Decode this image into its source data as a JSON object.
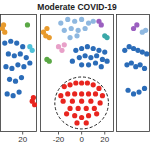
{
  "chart_data": [
    {
      "type": "scatter",
      "xlim": [
        1,
        32
      ],
      "ylim": [
        -35,
        30
      ],
      "xticks": [
        20
      ],
      "tick_labels": "x",
      "series": [
        {
          "color": "#2b6cb8",
          "x": [
            5,
            10,
            15,
            20,
            8,
            13,
            18,
            23,
            6,
            11,
            16,
            21,
            26,
            9,
            14,
            19,
            7,
            12,
            17
          ],
          "y": [
            14,
            15,
            14,
            12,
            8,
            7,
            8,
            6,
            1,
            0,
            2,
            1,
            3,
            -6,
            -7,
            -5,
            -14,
            -15,
            -13
          ]
        },
        {
          "color": "#e89a2c",
          "x": [
            3,
            5,
            4
          ],
          "y": [
            22,
            20,
            24
          ]
        },
        {
          "color": "#4fc1d8",
          "x": [
            26,
            28
          ],
          "y": [
            12,
            10
          ]
        },
        {
          "color": "#e8251f",
          "x": [
            28,
            30,
            29
          ],
          "y": [
            -18,
            -20,
            -16
          ]
        },
        {
          "color": "#5aa845",
          "x": [
            24
          ],
          "y": [
            24
          ]
        }
      ]
    },
    {
      "type": "scatter",
      "title": "Moderate COVID-19",
      "xlim": [
        -36,
        28
      ],
      "ylim": [
        -35,
        30
      ],
      "xticks": [
        -20,
        0,
        20
      ],
      "tick_labels": "x",
      "series": [
        {
          "color": "#e8251f",
          "x": [
            -15,
            -10,
            -5,
            0,
            5,
            10,
            15,
            -12,
            -6,
            0,
            6,
            12,
            -16,
            -8,
            0,
            8,
            16,
            -10,
            -3,
            4,
            11,
            -6,
            0,
            6,
            -18,
            18,
            -13,
            13,
            -4,
            4
          ],
          "y": [
            -10,
            -9,
            -8,
            -8,
            -8,
            -9,
            -11,
            -14,
            -14,
            -14,
            -14,
            -14,
            -18,
            -18,
            -18,
            -18,
            -19,
            -22,
            -22,
            -22,
            -22,
            -26,
            -27,
            -26,
            -15,
            -15,
            -25,
            -25,
            -30,
            -30
          ]
        },
        {
          "color": "#2b6cb8",
          "x": [
            -5,
            0,
            5,
            10,
            15,
            20,
            -2,
            3,
            8,
            13,
            18,
            0,
            6,
            12,
            17,
            22,
            -8
          ],
          "y": [
            10,
            11,
            12,
            11,
            10,
            9,
            6,
            7,
            6,
            7,
            5,
            2,
            2,
            3,
            1,
            4,
            4
          ]
        },
        {
          "color": "#8fb8e0",
          "x": [
            -18,
            -12,
            -6,
            0,
            6,
            -15,
            -9,
            -3,
            3,
            -10,
            -4,
            10
          ],
          "y": [
            25,
            27,
            26,
            27,
            25,
            21,
            22,
            21,
            22,
            17,
            18,
            26
          ]
        },
        {
          "color": "#e89a2c",
          "x": [
            -33,
            -31,
            -30,
            -28
          ],
          "y": [
            20,
            18,
            22,
            17
          ]
        },
        {
          "color": "#e8a0c8",
          "x": [
            -20,
            -17,
            -15
          ],
          "y": [
            12,
            10,
            13
          ]
        },
        {
          "color": "#9b5fc0",
          "x": [
            15,
            17
          ],
          "y": [
            26,
            24
          ]
        },
        {
          "color": "#5aa845",
          "x": [
            -30,
            -28
          ],
          "y": [
            5,
            4
          ]
        },
        {
          "color": "#3aa8a8",
          "x": [
            20,
            22
          ],
          "y": [
            18,
            17
          ]
        }
      ]
    },
    {
      "type": "scatter",
      "xlim": [
        -36,
        -5
      ],
      "ylim": [
        -35,
        30
      ],
      "tick_labels": false,
      "series": [
        {
          "color": "#2b6cb8",
          "x": [
            -28,
            -24,
            -20,
            -16,
            -12,
            -8,
            -26,
            -22,
            -18,
            -14,
            -10,
            -25,
            -20,
            -15,
            -10
          ],
          "y": [
            10,
            12,
            11,
            10,
            9,
            8,
            2,
            3,
            1,
            2,
            0,
            -12,
            -14,
            -13,
            -11
          ]
        },
        {
          "color": "#9b5fc0",
          "x": [
            -20,
            -17
          ],
          "y": [
            22,
            24
          ]
        },
        {
          "color": "#8fb8e0",
          "x": [
            -12,
            -9
          ],
          "y": [
            20,
            21
          ]
        }
      ]
    }
  ]
}
